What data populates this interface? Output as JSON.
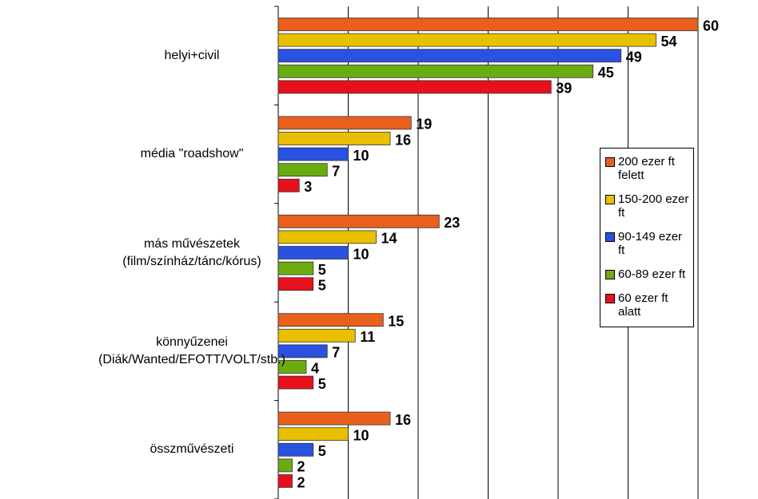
{
  "chart_data": {
    "type": "bar",
    "orientation": "horizontal",
    "categories": [
      "helyi+civil",
      "média \"roadshow\"",
      "más művészetek (film/színház/tánc/kórus)",
      "könnyűzenei (Diák/Wanted/EFOTT/VOLT/stb.)",
      "összművészeti"
    ],
    "series": [
      {
        "name": "200 ezer ft felett",
        "color": "#e8601c",
        "values": [
          60,
          19,
          23,
          15,
          16
        ]
      },
      {
        "name": "150-200 ezer ft",
        "color": "#e8c000",
        "values": [
          54,
          16,
          14,
          11,
          10
        ]
      },
      {
        "name": "90-149 ezer ft",
        "color": "#2a52e0",
        "values": [
          49,
          10,
          10,
          7,
          5
        ]
      },
      {
        "name": "60-89 ezer ft",
        "color": "#6aac10",
        "values": [
          45,
          7,
          5,
          4,
          2
        ]
      },
      {
        "name": "60 ezer ft alatt",
        "color": "#e8101c",
        "values": [
          39,
          3,
          5,
          5,
          2
        ]
      }
    ],
    "xlim": [
      0,
      60
    ],
    "xticks": [
      0,
      10,
      20,
      30,
      40,
      50,
      60
    ],
    "grid": true,
    "legend": "right"
  }
}
